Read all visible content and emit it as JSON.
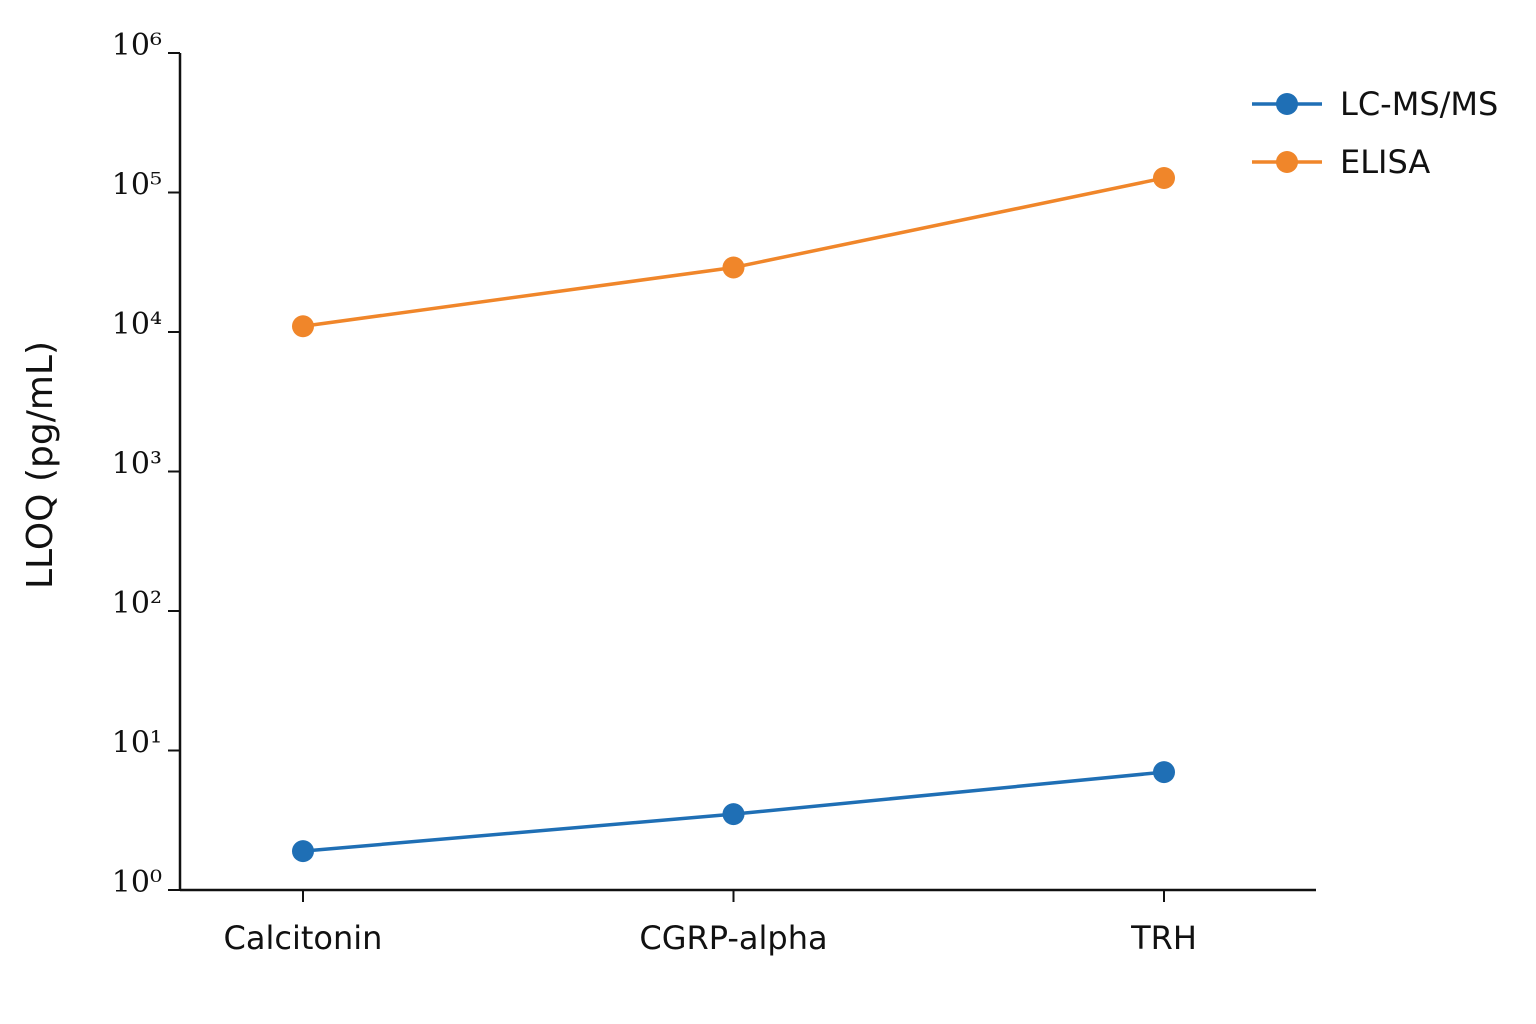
{
  "chart_data": {
    "type": "line",
    "y_label": "LLOQ (pg/mL)",
    "log_y": true,
    "categories": [
      "Calcitonin",
      "CGRP-alpha",
      "TRH"
    ],
    "series": [
      {
        "name": "LC-MS/MS",
        "color": "#1f6fb5",
        "values": [
          1.9,
          3.5,
          7.0
        ]
      },
      {
        "name": "ELISA",
        "color": "#f0862a",
        "values": [
          11000,
          29000,
          127000
        ]
      }
    ],
    "ylim": [
      1,
      1000000
    ],
    "yticks": [
      {
        "value": 1,
        "label": "10⁰"
      },
      {
        "value": 10,
        "label": "10¹"
      },
      {
        "value": 100,
        "label": "10²"
      },
      {
        "value": 1000,
        "label": "10³"
      },
      {
        "value": 10000,
        "label": "10⁴"
      },
      {
        "value": 100000,
        "label": "10⁵"
      },
      {
        "value": 1000000,
        "label": "10⁶"
      }
    ],
    "legend": "upper right",
    "grid": false
  }
}
